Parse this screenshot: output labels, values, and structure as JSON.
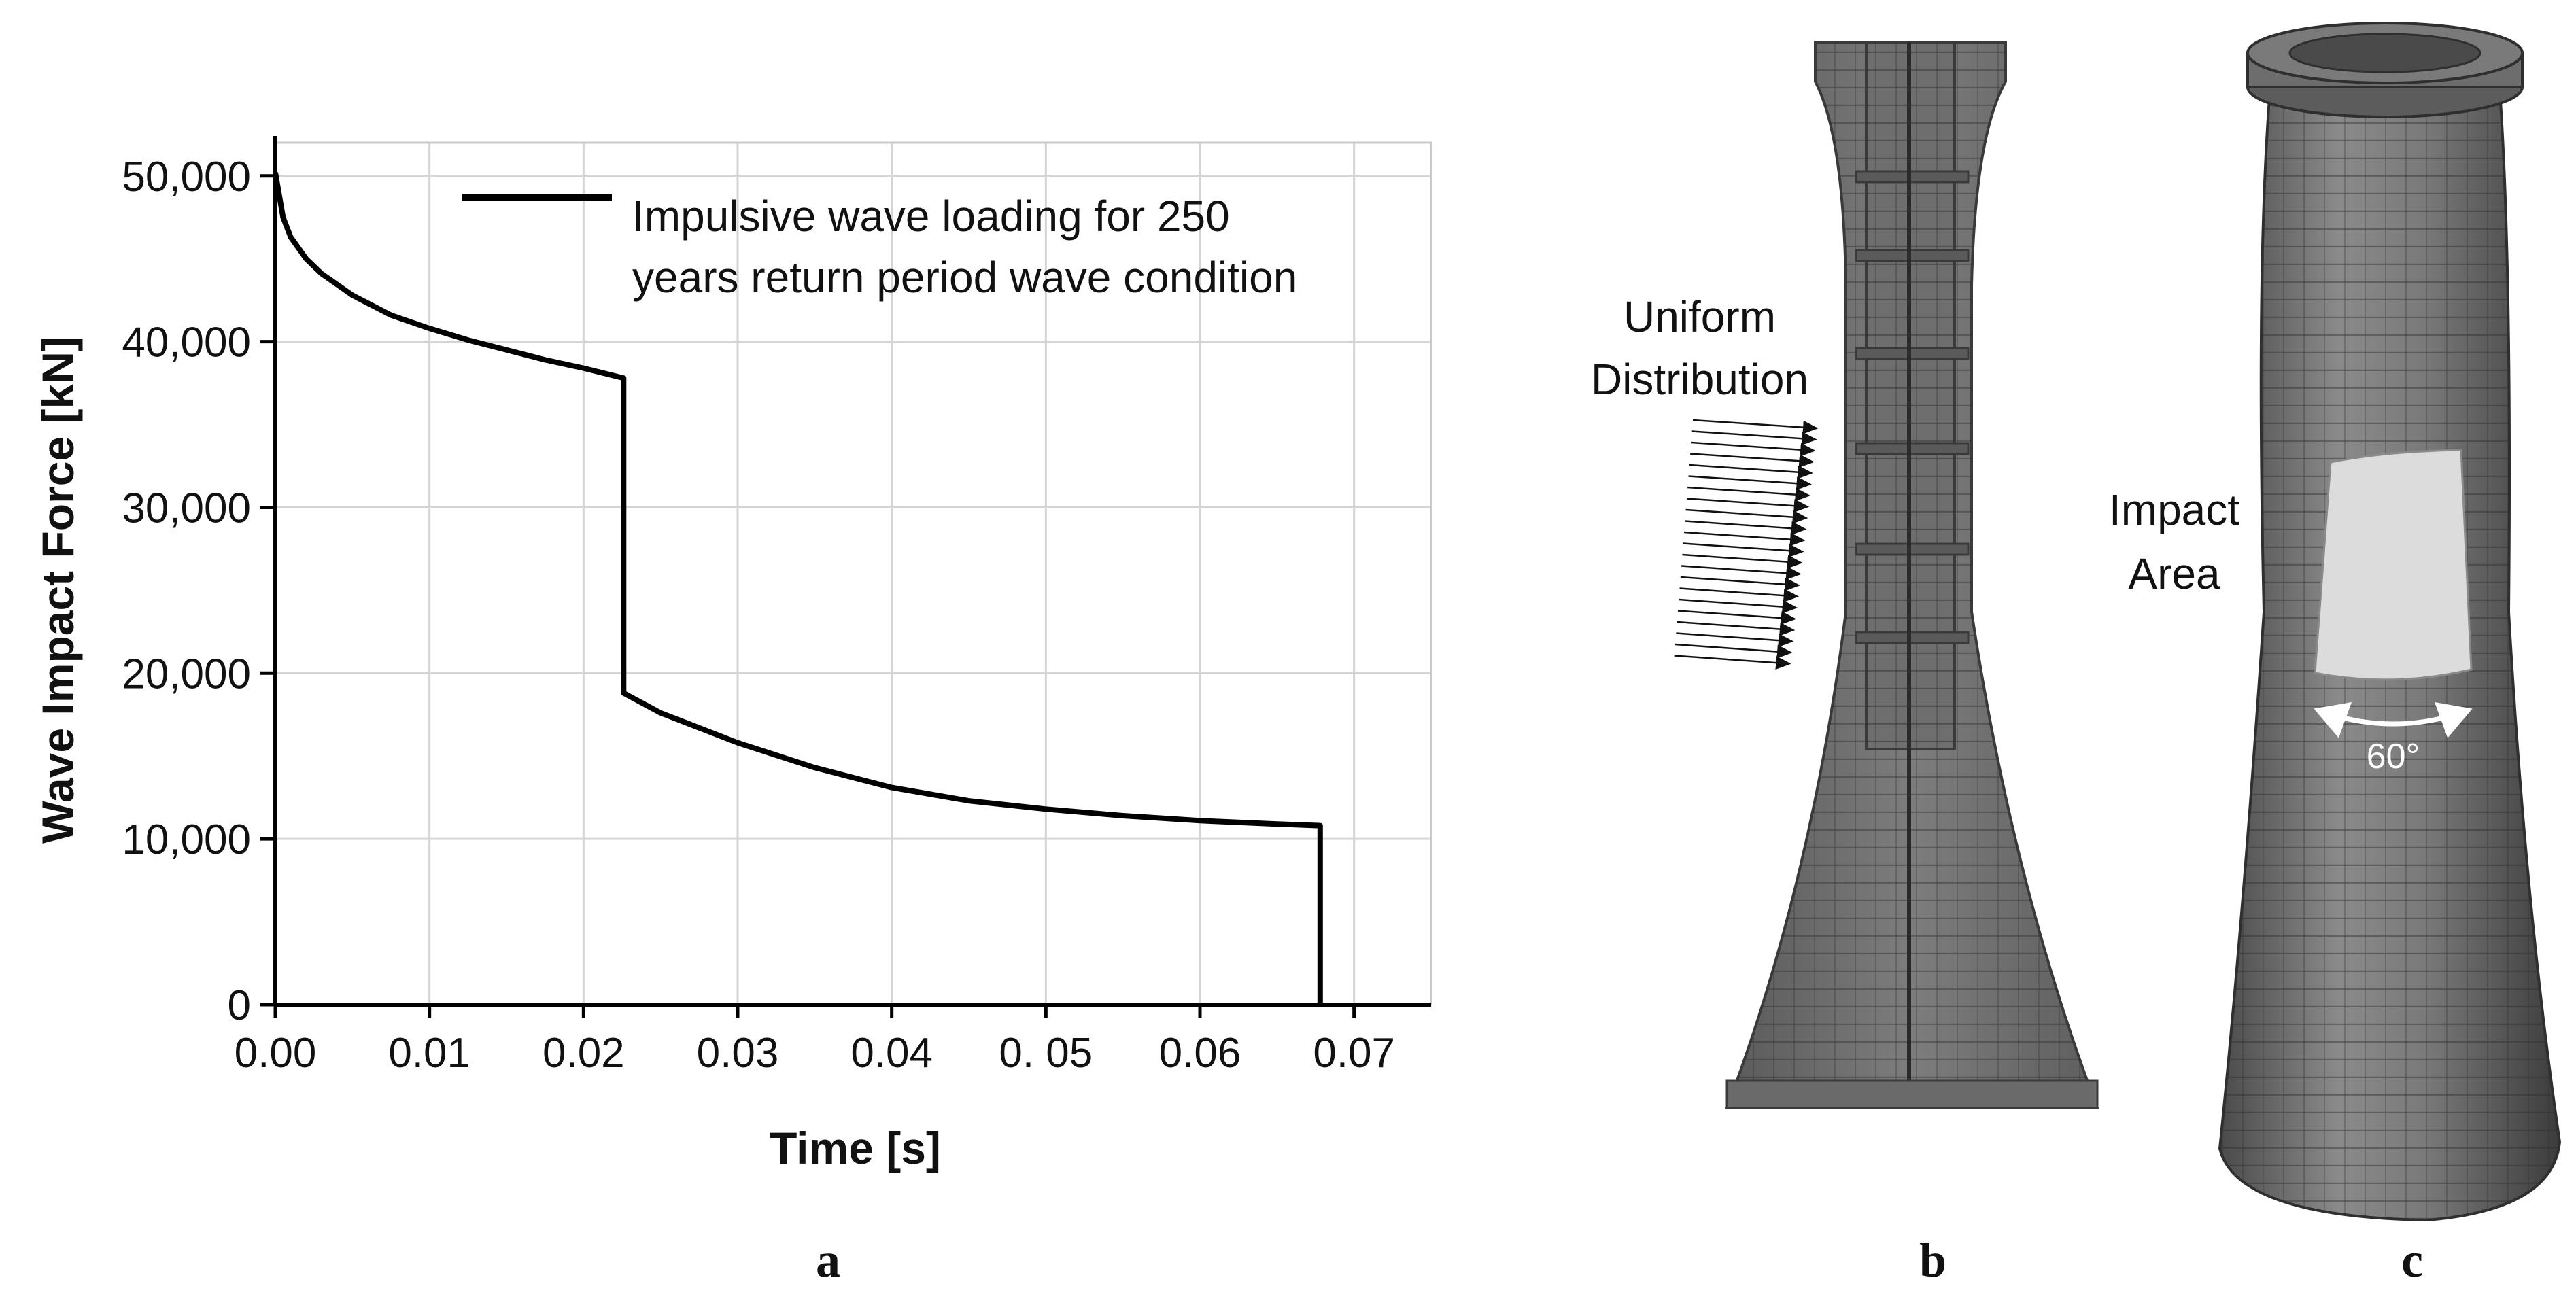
{
  "chart_data": {
    "type": "line",
    "title": "",
    "xlabel": "Time [s]",
    "ylabel": "Wave Impact Force [kN]",
    "xlim": [
      0,
      0.075
    ],
    "ylim": [
      0,
      52000
    ],
    "x_ticks": [
      0,
      0.01,
      0.02,
      0.03,
      0.04,
      0.05,
      0.06,
      0.07
    ],
    "x_tick_labels": [
      "0.00",
      "0.01",
      "0.02",
      "0.03",
      "0.04",
      "0. 05",
      "0.06",
      "0.07"
    ],
    "y_ticks": [
      0,
      10000,
      20000,
      30000,
      40000,
      50000
    ],
    "y_tick_labels": [
      "0",
      "10,000",
      "20,000",
      "30,000",
      "40,000",
      "50,000"
    ],
    "grid": true,
    "legend_position": "top-right",
    "series": [
      {
        "name": "Impulsive wave loading for 250 years return period wave condition",
        "color": "#000000",
        "x": [
          0,
          0.0005,
          0.001,
          0.002,
          0.003,
          0.005,
          0.0075,
          0.01,
          0.0125,
          0.015,
          0.0175,
          0.02,
          0.0226,
          0.0226,
          0.025,
          0.03,
          0.035,
          0.04,
          0.045,
          0.05,
          0.055,
          0.06,
          0.065,
          0.0678,
          0.0678
        ],
        "y": [
          50200,
          47500,
          46300,
          45000,
          44100,
          42800,
          41600,
          40800,
          40100,
          39500,
          38900,
          38400,
          37800,
          18800,
          17600,
          15800,
          14300,
          13100,
          12300,
          11800,
          11400,
          11100,
          10900,
          10800,
          0
        ]
      }
    ]
  },
  "legend_lines": [
    "Impulsive wave loading for 250",
    "years return period wave condition"
  ],
  "panel_b": {
    "label": "b",
    "annotation_lines": [
      "Uniform",
      "Distribution"
    ]
  },
  "panel_c": {
    "label": "c",
    "annotation_lines": [
      "Impact",
      "Area"
    ],
    "angle_label": "60°"
  },
  "panel_a_label": "a"
}
